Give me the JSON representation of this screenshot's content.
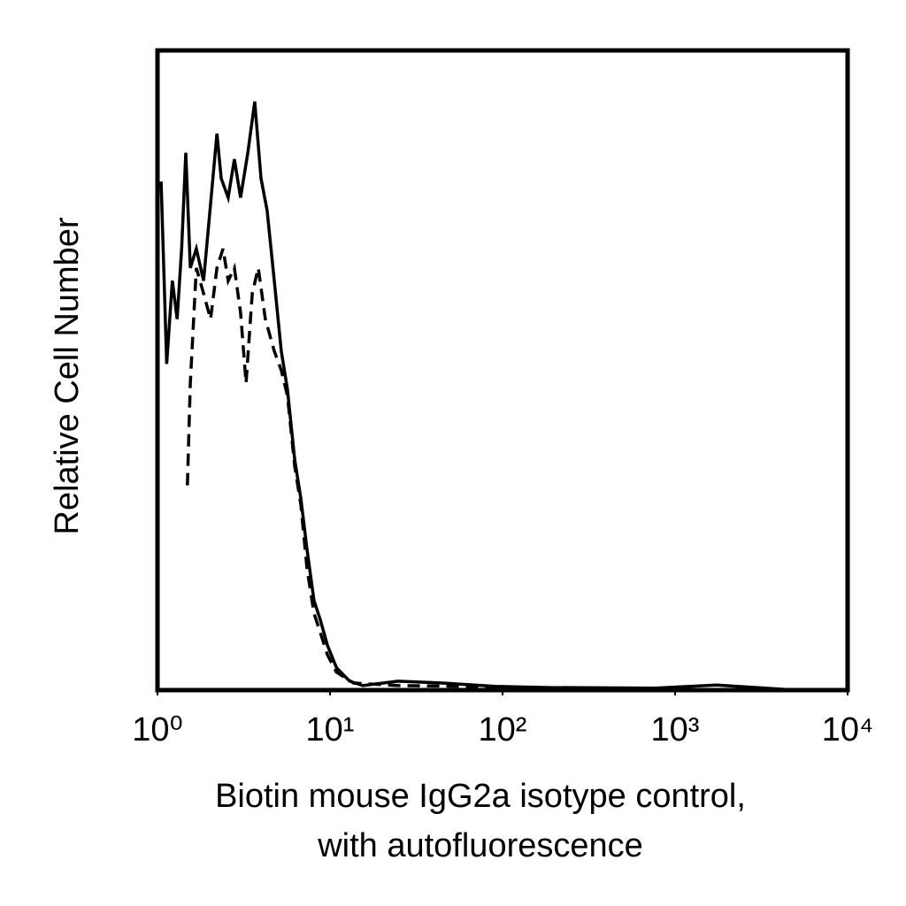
{
  "chart_data": {
    "type": "line",
    "xlabel": [
      "Biotin mouse IgG2a isotype control,",
      "with autofluorescence"
    ],
    "ylabel": "Relative Cell Number",
    "xscale": "log",
    "xlim": [
      1,
      10000
    ],
    "xticks": [
      {
        "value": 1,
        "label": "10⁰"
      },
      {
        "value": 10,
        "label": "10¹"
      },
      {
        "value": 100,
        "label": "10²"
      },
      {
        "value": 1000,
        "label": "10³"
      },
      {
        "value": 10000,
        "label": "10⁴"
      }
    ],
    "ylim": [
      0,
      100
    ],
    "series": [
      {
        "color": "#000000",
        "line_style": "solid",
        "x": [
          1.05,
          1.13,
          1.22,
          1.3,
          1.38,
          1.46,
          1.55,
          1.68,
          1.85,
          2.03,
          2.21,
          2.34,
          2.57,
          2.79,
          3.03,
          3.34,
          3.66,
          3.98,
          4.32,
          4.75,
          5.22,
          5.67,
          6.24,
          6.77,
          7.36,
          8.08,
          8.78,
          9.66,
          10.9,
          13.0,
          15.5,
          24.8,
          44.8,
          91,
          185,
          762,
          1742,
          5045,
          10000
        ],
        "values": [
          79.5,
          51,
          64,
          58,
          69,
          84,
          66,
          69,
          64,
          76,
          87,
          80,
          77,
          83,
          77,
          84,
          92,
          80,
          75,
          64,
          53,
          47,
          36,
          30,
          22,
          14,
          11,
          7,
          3.5,
          1.4,
          0.7,
          1.4,
          1.1,
          0.6,
          0.4,
          0.3,
          0.8,
          0,
          0
        ]
      },
      {
        "color": "#000000",
        "line_style": "dashed",
        "x": [
          1.49,
          1.55,
          1.68,
          1.85,
          2.03,
          2.21,
          2.4,
          2.57,
          2.79,
          3.03,
          3.26,
          3.54,
          3.84,
          4.22,
          4.75,
          5.22,
          5.67,
          6.24,
          6.77,
          7.36,
          8.08,
          8.78,
          9.66,
          10.9,
          13.7,
          24.8,
          56.7,
          146,
          5045
        ],
        "values": [
          32,
          48,
          66,
          62,
          58,
          66,
          69,
          64,
          66,
          59,
          48,
          62,
          66,
          58,
          53,
          50,
          46,
          35,
          29,
          19,
          12,
          9,
          5.5,
          2.8,
          1.1,
          0.7,
          0.6,
          0.3,
          0
        ]
      }
    ]
  }
}
